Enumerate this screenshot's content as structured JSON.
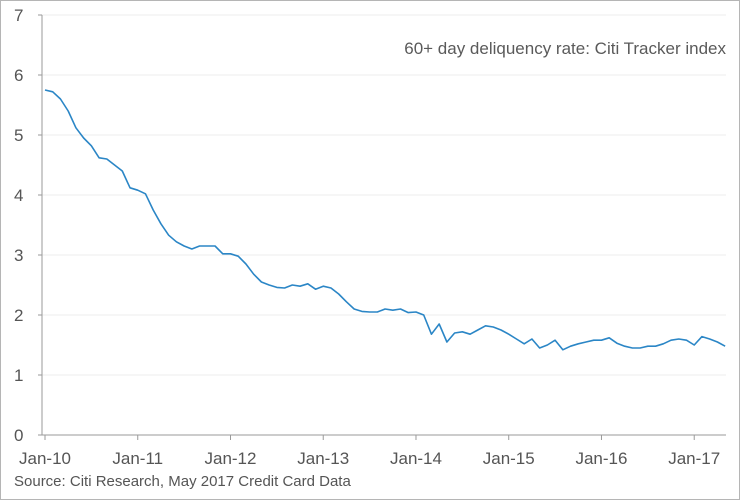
{
  "chart_data": {
    "type": "line",
    "title": "60+ day deliquency rate: Citi Tracker index",
    "source": "Source: Citi Research, May 2017 Credit Card Data",
    "xlabel": "",
    "ylabel": "",
    "ylim": [
      0,
      7
    ],
    "y_ticks": [
      "0",
      "1",
      "2",
      "3",
      "4",
      "5",
      "6",
      "7"
    ],
    "x_tick_labels": [
      "Jan-10",
      "Jan-11",
      "Jan-12",
      "Jan-13",
      "Jan-14",
      "Jan-15",
      "Jan-16",
      "Jan-17"
    ],
    "x_start": "2010-01",
    "x_end": "2017-05",
    "grid": true,
    "line_color": "#2b86c6",
    "series": [
      {
        "values": [
          5.75,
          5.72,
          5.6,
          5.4,
          5.12,
          4.95,
          4.82,
          4.62,
          4.6,
          4.5,
          4.4,
          4.12,
          4.08,
          4.02,
          3.75,
          3.52,
          3.33,
          3.22,
          3.15,
          3.1,
          3.15,
          3.15,
          3.15,
          3.02,
          3.02,
          2.98,
          2.85,
          2.68,
          2.55,
          2.5,
          2.46,
          2.45,
          2.5,
          2.48,
          2.52,
          2.43,
          2.48,
          2.45,
          2.35,
          2.22,
          2.1,
          2.06,
          2.05,
          2.05,
          2.1,
          2.08,
          2.1,
          2.04,
          2.05,
          2.0,
          1.68,
          1.85,
          1.55,
          1.7,
          1.72,
          1.68,
          1.75,
          1.82,
          1.8,
          1.75,
          1.68,
          1.6,
          1.52,
          1.6,
          1.45,
          1.5,
          1.58,
          1.42,
          1.48,
          1.52,
          1.55,
          1.58,
          1.58,
          1.62,
          1.53,
          1.48,
          1.45,
          1.45,
          1.48,
          1.48,
          1.52,
          1.58,
          1.6,
          1.58,
          1.5,
          1.64,
          1.6,
          1.55,
          1.48
        ]
      }
    ]
  }
}
